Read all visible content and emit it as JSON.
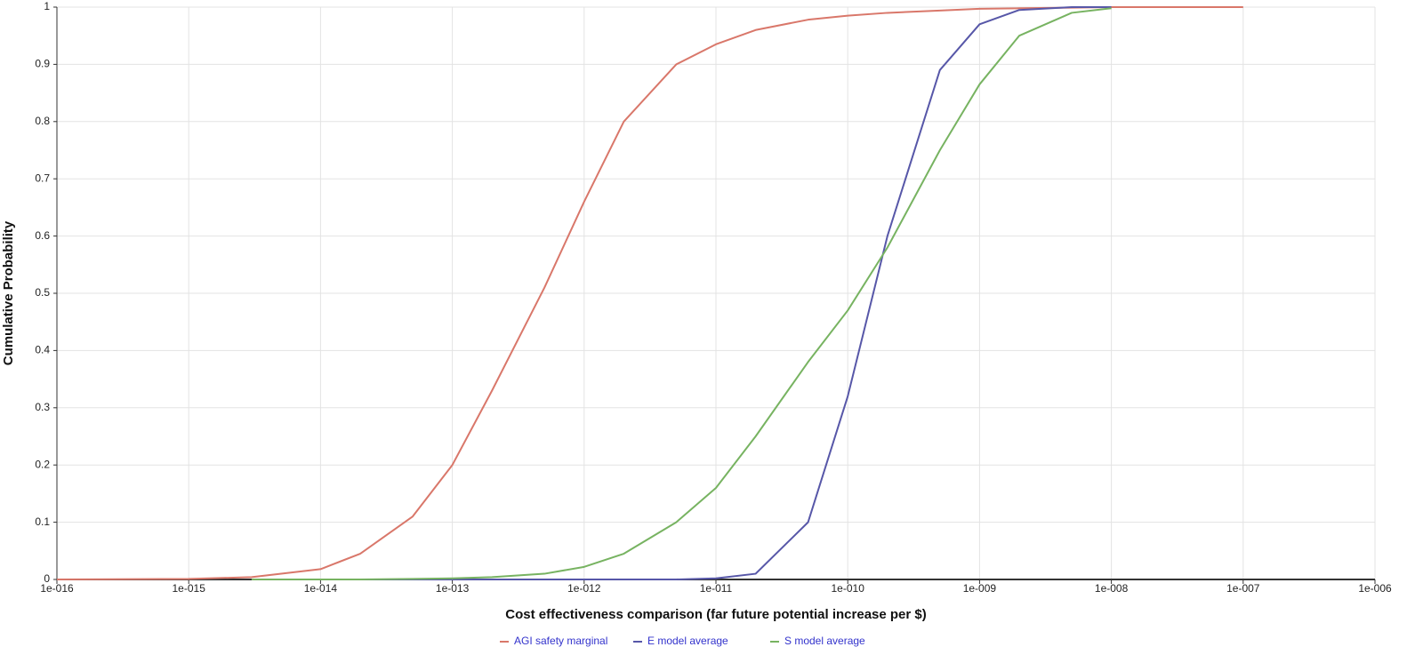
{
  "chart_data": {
    "type": "line",
    "x_label": "Cost effectiveness comparison (far future potential increase per $)",
    "y_label": "Cumulative Probability",
    "xscale": "log",
    "grid": true,
    "legend": "bottom",
    "xlim": [
      1e-16,
      1e-06
    ],
    "xticks": [
      {
        "value": 1e-16,
        "label": "1e-016"
      },
      {
        "value": 1e-15,
        "label": "1e-015"
      },
      {
        "value": 1e-14,
        "label": "1e-014"
      },
      {
        "value": 1e-13,
        "label": "1e-013"
      },
      {
        "value": 1e-12,
        "label": "1e-012"
      },
      {
        "value": 1e-11,
        "label": "1e-011"
      },
      {
        "value": 1e-10,
        "label": "1e-010"
      },
      {
        "value": 1e-09,
        "label": "1e-009"
      },
      {
        "value": 1e-08,
        "label": "1e-008"
      },
      {
        "value": 1e-07,
        "label": "1e-007"
      },
      {
        "value": 1e-06,
        "label": "1e-006"
      }
    ],
    "ylim": [
      0,
      1
    ],
    "yticks": [
      0,
      0.1,
      0.2,
      0.3,
      0.4,
      0.5,
      0.6,
      0.7,
      0.8,
      0.9,
      1
    ],
    "x": [
      1e-16,
      1e-15,
      3e-15,
      1e-14,
      2e-14,
      5e-14,
      1e-13,
      2e-13,
      5e-13,
      1e-12,
      2e-12,
      5e-12,
      1e-11,
      2e-11,
      5e-11,
      1e-10,
      2e-10,
      5e-10,
      1e-09,
      2e-09,
      5e-09,
      1e-08,
      1e-07
    ],
    "series": [
      {
        "name": "AGI safety marginal",
        "color": "#d9776a",
        "values": [
          0,
          0.001,
          0.004,
          0.018,
          0.045,
          0.11,
          0.2,
          0.33,
          0.51,
          0.66,
          0.8,
          0.9,
          0.935,
          0.96,
          0.978,
          0.985,
          0.99,
          0.994,
          0.997,
          0.998,
          0.999,
          1,
          1
        ]
      },
      {
        "name": "E model average",
        "color": "#5757a8",
        "values": [
          null,
          null,
          null,
          0,
          0,
          0,
          0,
          0,
          0,
          0,
          0,
          0,
          0.002,
          0.01,
          0.1,
          0.32,
          0.6,
          0.89,
          0.97,
          0.995,
          1,
          1,
          null
        ]
      },
      {
        "name": "S model average",
        "color": "#77b361",
        "values": [
          null,
          null,
          0,
          0,
          0,
          0.001,
          0.002,
          0.004,
          0.01,
          0.022,
          0.045,
          0.1,
          0.16,
          0.25,
          0.38,
          0.47,
          0.58,
          0.75,
          0.865,
          0.95,
          0.99,
          0.998,
          null
        ]
      }
    ]
  }
}
